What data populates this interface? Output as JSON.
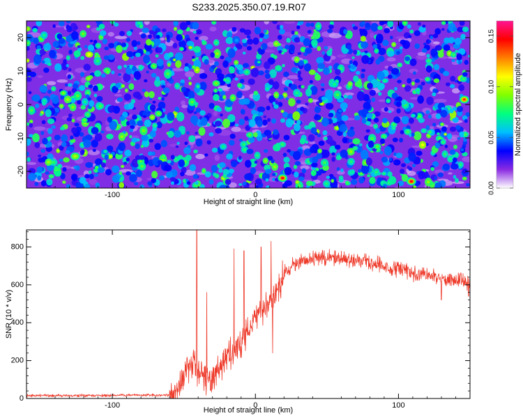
{
  "title": "S233.2025.350.07.19.R07",
  "chart_data": [
    {
      "type": "heatmap",
      "title": "S233.2025.350.07.19.R07",
      "xlabel": "Height of straight line (km)",
      "ylabel": "Frequency (Hz)",
      "xlim": [
        -160,
        150
      ],
      "ylim": [
        -25,
        25
      ],
      "x_ticks": [
        -100,
        0,
        100
      ],
      "x_tick_labels": [
        "-100",
        "0",
        "100"
      ],
      "y_ticks": [
        -20,
        -10,
        0,
        10,
        20
      ],
      "y_tick_labels": [
        "-20",
        "-10",
        "0",
        "10",
        "20"
      ],
      "colorbar": {
        "label": "Normalized spectral amplitude",
        "range": [
          0,
          0.165
        ],
        "ticks": [
          0,
          0.05,
          0.1,
          0.15
        ],
        "tick_labels": [
          "0.00",
          "0.05",
          "0.10",
          "0.15"
        ],
        "colormap": [
          "#ffffff",
          "#8a2be2",
          "#0000ff",
          "#00bfff",
          "#00ff80",
          "#80ff00",
          "#ffff00",
          "#ff8000",
          "#ff0000",
          "#ff1493"
        ]
      },
      "hotspots": [
        {
          "x": 19,
          "y": -22,
          "value": 0.15
        },
        {
          "x": 109,
          "y": -23,
          "value": 0.15
        },
        {
          "x": 146,
          "y": 1.5,
          "value": 0.14
        },
        {
          "x": -126,
          "y": -15.5,
          "value": 0.1
        }
      ]
    },
    {
      "type": "line",
      "xlabel": "Height of straight line (km)",
      "ylabel": "SNR (10 * v/v)",
      "xlim": [
        -160,
        150
      ],
      "ylim": [
        0,
        890
      ],
      "x_ticks": [
        -100,
        0,
        100
      ],
      "x_tick_labels": [
        "-100",
        "0",
        "100"
      ],
      "y_ticks": [
        0,
        200,
        400,
        600,
        800
      ],
      "y_tick_labels": [
        "0",
        "200",
        "400",
        "600",
        "800"
      ],
      "series": [
        {
          "name": "SNR",
          "color": "#ee3b2b",
          "baseline_x": [
            -160,
            -60,
            -55,
            -50,
            -45,
            -40,
            -35,
            -30,
            -25,
            -20,
            -15,
            -10,
            -5,
            0,
            5,
            10,
            15,
            20,
            25,
            30,
            40,
            50,
            60,
            70,
            80,
            90,
            100,
            110,
            120,
            130,
            140,
            150
          ],
          "baseline_y": [
            15,
            18,
            50,
            90,
            180,
            150,
            100,
            120,
            170,
            220,
            260,
            290,
            350,
            430,
            470,
            500,
            560,
            660,
            700,
            720,
            740,
            745,
            740,
            730,
            720,
            700,
            680,
            660,
            650,
            640,
            625,
            610
          ],
          "spikes": [
            {
              "x": -41,
              "y": 890
            },
            {
              "x": -34,
              "y": 560
            },
            {
              "x": -15,
              "y": 790
            },
            {
              "x": -8,
              "y": 780
            },
            {
              "x": 4,
              "y": 800
            },
            {
              "x": 11,
              "y": 830
            },
            {
              "x": 12,
              "y": 240
            },
            {
              "x": 130,
              "y": 520
            },
            {
              "x": 149,
              "y": 540
            }
          ]
        }
      ]
    }
  ]
}
